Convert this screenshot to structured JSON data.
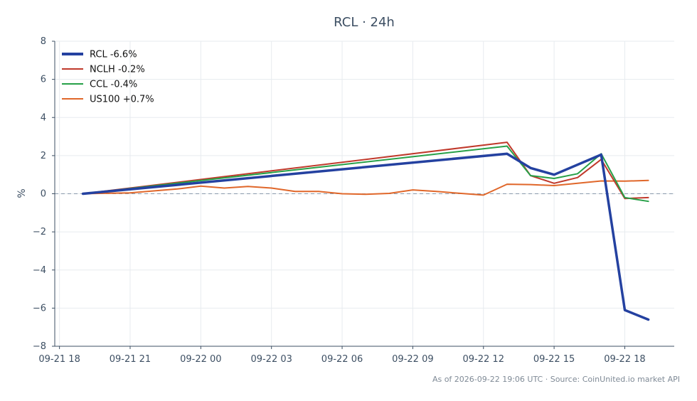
{
  "chart_data": {
    "type": "line",
    "title": "RCL · 24h",
    "ylabel": "%",
    "xlabel": "",
    "ylim": [
      -8,
      8
    ],
    "yticks": [
      -8,
      -6,
      -4,
      -2,
      0,
      2,
      4,
      6,
      8
    ],
    "ytick_labels": [
      "−8",
      "−6",
      "−4",
      "−2",
      "0",
      "2",
      "4",
      "6",
      "8"
    ],
    "xlim": [
      "2026-09-21 17:48",
      "2026-09-22 20:06"
    ],
    "xticks": [
      {
        "t": "2026-09-21 18:00",
        "label": "09-21 18"
      },
      {
        "t": "2026-09-21 21:00",
        "label": "09-21 21"
      },
      {
        "t": "2026-09-22 00:00",
        "label": "09-22 00"
      },
      {
        "t": "2026-09-22 03:00",
        "label": "09-22 03"
      },
      {
        "t": "2026-09-22 06:00",
        "label": "09-22 06"
      },
      {
        "t": "2026-09-22 09:00",
        "label": "09-22 09"
      },
      {
        "t": "2026-09-22 12:00",
        "label": "09-22 12"
      },
      {
        "t": "2026-09-22 15:00",
        "label": "09-22 15"
      },
      {
        "t": "2026-09-22 18:00",
        "label": "09-22 18"
      }
    ],
    "grid": true,
    "zero_line": true,
    "legend_position": "top-left",
    "series": [
      {
        "name": "RCL -6.6%",
        "color": "#2441a0",
        "points": [
          [
            "2026-09-21 19:00",
            0.0
          ],
          [
            "2026-09-22 13:00",
            2.1
          ],
          [
            "2026-09-22 14:00",
            1.35
          ],
          [
            "2026-09-22 15:00",
            1.0
          ],
          [
            "2026-09-22 17:00",
            2.05
          ],
          [
            "2026-09-22 18:00",
            -6.1
          ],
          [
            "2026-09-22 19:00",
            -6.6
          ]
        ]
      },
      {
        "name": "NCLH -0.2%",
        "color": "#c0392b",
        "points": [
          [
            "2026-09-21 19:00",
            0.0
          ],
          [
            "2026-09-22 13:00",
            2.7
          ],
          [
            "2026-09-22 14:00",
            0.95
          ],
          [
            "2026-09-22 15:00",
            0.55
          ],
          [
            "2026-09-22 16:00",
            0.85
          ],
          [
            "2026-09-22 17:00",
            1.8
          ],
          [
            "2026-09-22 18:00",
            -0.25
          ],
          [
            "2026-09-22 19:00",
            -0.2
          ]
        ]
      },
      {
        "name": "CCL -0.4%",
        "color": "#27a048",
        "points": [
          [
            "2026-09-21 19:00",
            0.0
          ],
          [
            "2026-09-22 13:00",
            2.5
          ],
          [
            "2026-09-22 14:00",
            0.95
          ],
          [
            "2026-09-22 15:00",
            0.8
          ],
          [
            "2026-09-22 16:00",
            1.05
          ],
          [
            "2026-09-22 17:00",
            2.1
          ],
          [
            "2026-09-22 18:00",
            -0.2
          ],
          [
            "2026-09-22 19:00",
            -0.4
          ]
        ]
      },
      {
        "name": "US100 +0.7%",
        "color": "#e0672a",
        "points": [
          [
            "2026-09-21 19:00",
            0.0
          ],
          [
            "2026-09-21 21:00",
            0.05
          ],
          [
            "2026-09-21 23:00",
            0.25
          ],
          [
            "2026-09-22 00:00",
            0.4
          ],
          [
            "2026-09-22 01:00",
            0.3
          ],
          [
            "2026-09-22 02:00",
            0.38
          ],
          [
            "2026-09-22 03:00",
            0.3
          ],
          [
            "2026-09-22 04:00",
            0.12
          ],
          [
            "2026-09-22 05:00",
            0.12
          ],
          [
            "2026-09-22 06:00",
            0.0
          ],
          [
            "2026-09-22 07:00",
            -0.03
          ],
          [
            "2026-09-22 08:00",
            0.02
          ],
          [
            "2026-09-22 09:00",
            0.2
          ],
          [
            "2026-09-22 10:00",
            0.12
          ],
          [
            "2026-09-22 12:00",
            -0.07
          ],
          [
            "2026-09-22 13:00",
            0.5
          ],
          [
            "2026-09-22 14:00",
            0.48
          ],
          [
            "2026-09-22 15:00",
            0.43
          ],
          [
            "2026-09-22 16:00",
            0.55
          ],
          [
            "2026-09-22 17:00",
            0.67
          ],
          [
            "2026-09-22 18:00",
            0.66
          ],
          [
            "2026-09-22 19:00",
            0.7
          ]
        ]
      }
    ]
  },
  "footer": "As of 2026-09-22 19:06 UTC · Source: CoinUnited.io market API"
}
